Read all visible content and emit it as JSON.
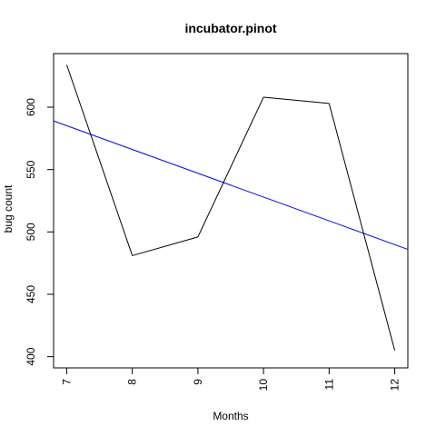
{
  "chart_data": {
    "type": "line",
    "title": "incubator.pinot",
    "xlabel": "Months",
    "ylabel": "bug count",
    "x": [
      7,
      8,
      9,
      10,
      11,
      12
    ],
    "series": [
      {
        "values": [
          634,
          481,
          496,
          608,
          603,
          405
        ],
        "color": "#000000"
      }
    ],
    "trend_line": {
      "values_at_x_range": [
        589,
        486
      ],
      "color": "#0000ff"
    },
    "x_ticks": [
      "7",
      "8",
      "9",
      "10",
      "11",
      "12"
    ],
    "y_ticks": [
      "400",
      "450",
      "500",
      "550",
      "600"
    ],
    "xlim": [
      6.8,
      12.2
    ],
    "ylim": [
      391,
      643
    ],
    "grid": false
  }
}
